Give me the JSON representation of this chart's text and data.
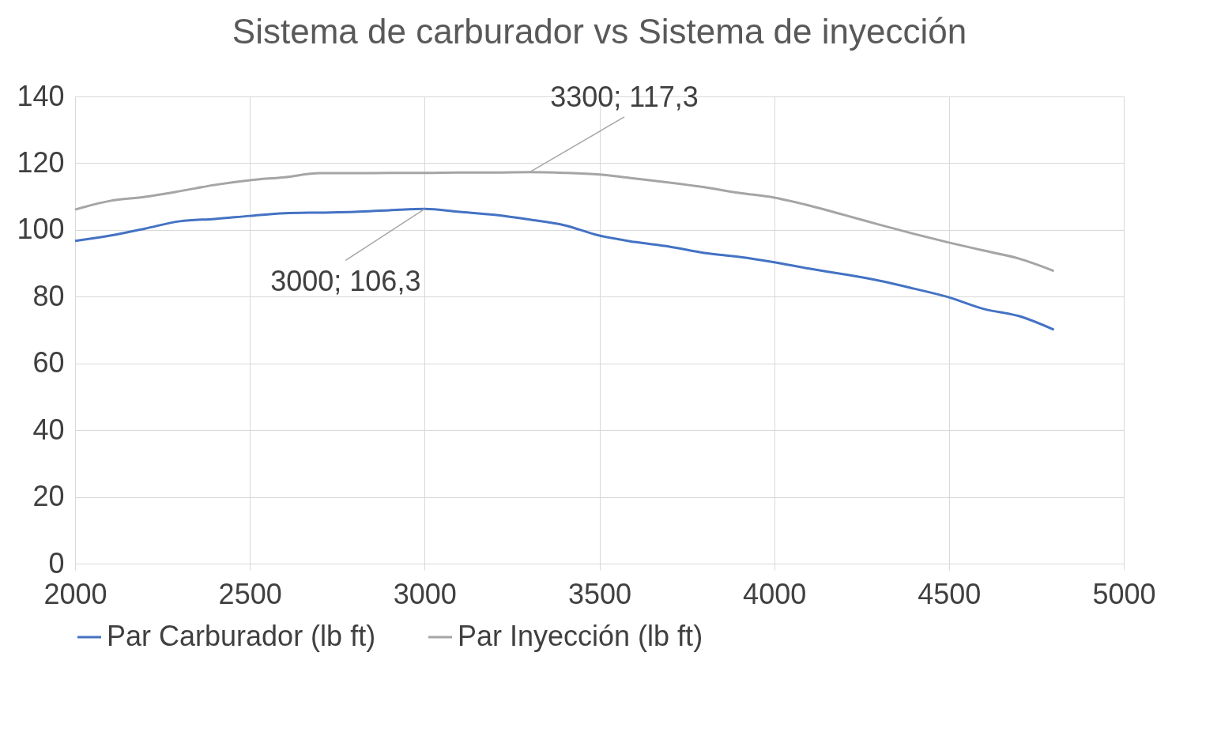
{
  "chart_data": {
    "type": "line",
    "title": "Sistema de carburador vs Sistema de inyección",
    "x": [
      2000,
      2100,
      2200,
      2300,
      2400,
      2500,
      2600,
      2700,
      2800,
      2900,
      3000,
      3100,
      3200,
      3300,
      3400,
      3500,
      3600,
      3700,
      3800,
      3900,
      4000,
      4100,
      4200,
      4300,
      4400,
      4500,
      4600,
      4700,
      4800
    ],
    "series": [
      {
        "name": "Par Carburador (lb ft)",
        "color": "#4472c4",
        "values": [
          96.7,
          98.3,
          100.4,
          102.6,
          103.3,
          104.2,
          105,
          105.2,
          105.4,
          105.9,
          106.3,
          105.4,
          104.5,
          103.1,
          101.4,
          98.3,
          96.4,
          95,
          93.1,
          91.9,
          90.3,
          88.4,
          86.7,
          84.8,
          82.4,
          79.8,
          76.3,
          74.2,
          70.1
        ]
      },
      {
        "name": "Par Inyección (lb ft)",
        "color": "#a5a5a5",
        "values": [
          106.1,
          108.7,
          109.9,
          111.6,
          113.5,
          114.9,
          115.8,
          117,
          117,
          117.1,
          117.1,
          117.2,
          117.2,
          117.3,
          117.1,
          116.6,
          115.4,
          114.2,
          112.8,
          111.1,
          109.7,
          107.3,
          104.5,
          101.6,
          98.8,
          96.2,
          93.8,
          91.4,
          87.7
        ]
      }
    ],
    "xlim": [
      2000,
      5000
    ],
    "xticks": [
      2000,
      2500,
      3000,
      3500,
      4000,
      4500,
      5000
    ],
    "ylim": [
      0,
      140
    ],
    "yticks": [
      0,
      20,
      40,
      60,
      80,
      100,
      120,
      140
    ],
    "annotations": [
      {
        "text": "3000; 106,3",
        "x": 3000,
        "y": 106.3
      },
      {
        "text": "3300; 117,3",
        "x": 3300,
        "y": 117.3
      }
    ],
    "grid": true,
    "legend": "bottom",
    "marker": "none",
    "line_style": "solid"
  }
}
